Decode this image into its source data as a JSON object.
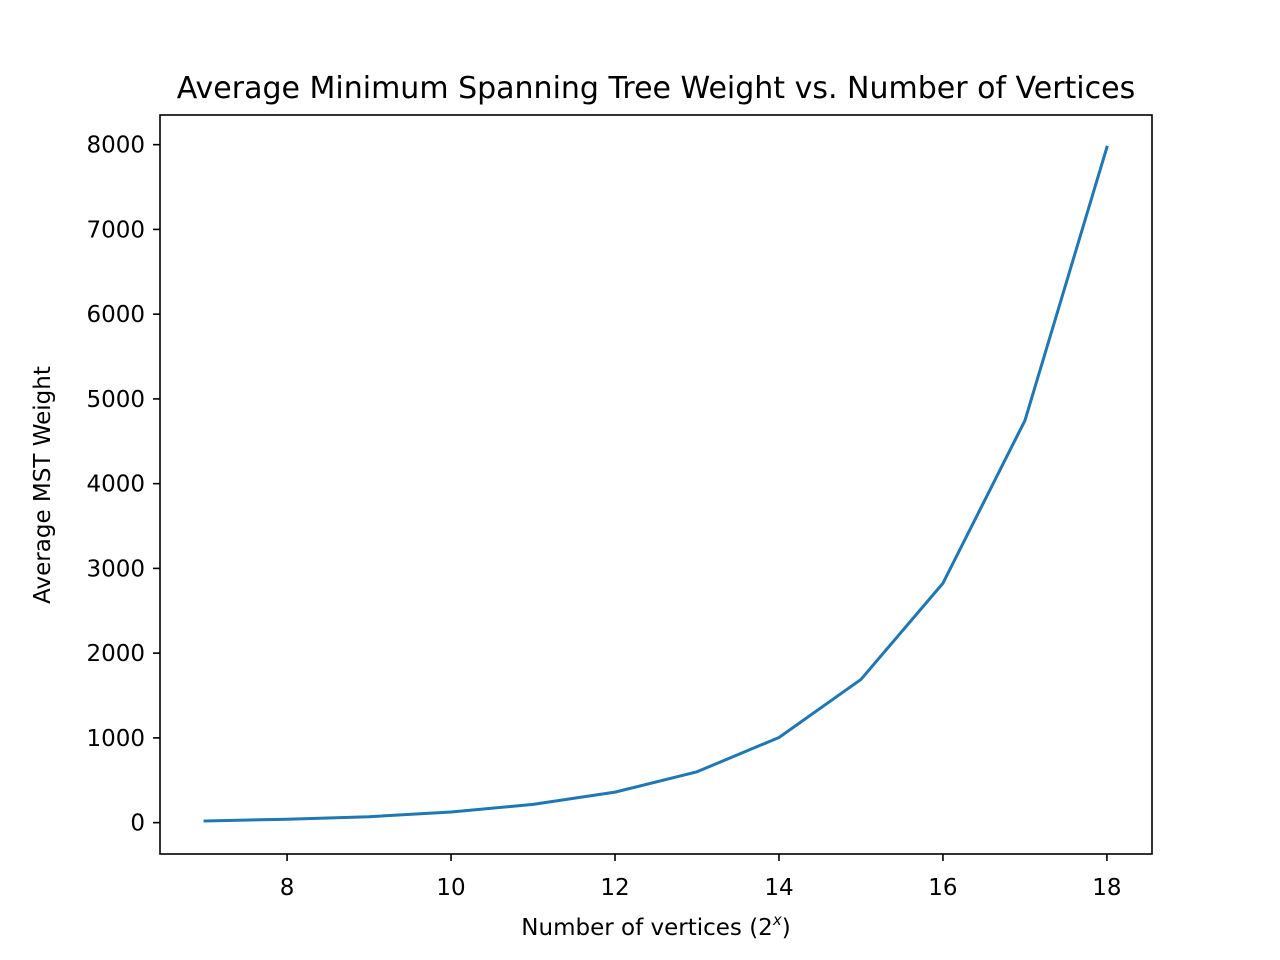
{
  "chart_data": {
    "type": "line",
    "title": "Average Minimum Spanning Tree Weight vs. Number of Vertices",
    "xlabel": {
      "prefix": "Number of vertices (2",
      "superscript": "x",
      "suffix": ")"
    },
    "ylabel": "Average MST Weight",
    "xlim": [
      6.45,
      18.55
    ],
    "ylim": [
      -370,
      8350
    ],
    "xticks": [
      8,
      10,
      12,
      14,
      16,
      18
    ],
    "yticks": [
      0,
      1000,
      2000,
      3000,
      4000,
      5000,
      6000,
      7000,
      8000
    ],
    "grid": false,
    "series": [
      {
        "color": "#1f77b4",
        "x": [
          7,
          8,
          9,
          10,
          11,
          12,
          13,
          14,
          15,
          16,
          17,
          18
        ],
        "y": [
          20,
          40,
          70,
          125,
          215,
          360,
          600,
          1005,
          1690,
          2825,
          4745,
          7970
        ]
      }
    ]
  }
}
